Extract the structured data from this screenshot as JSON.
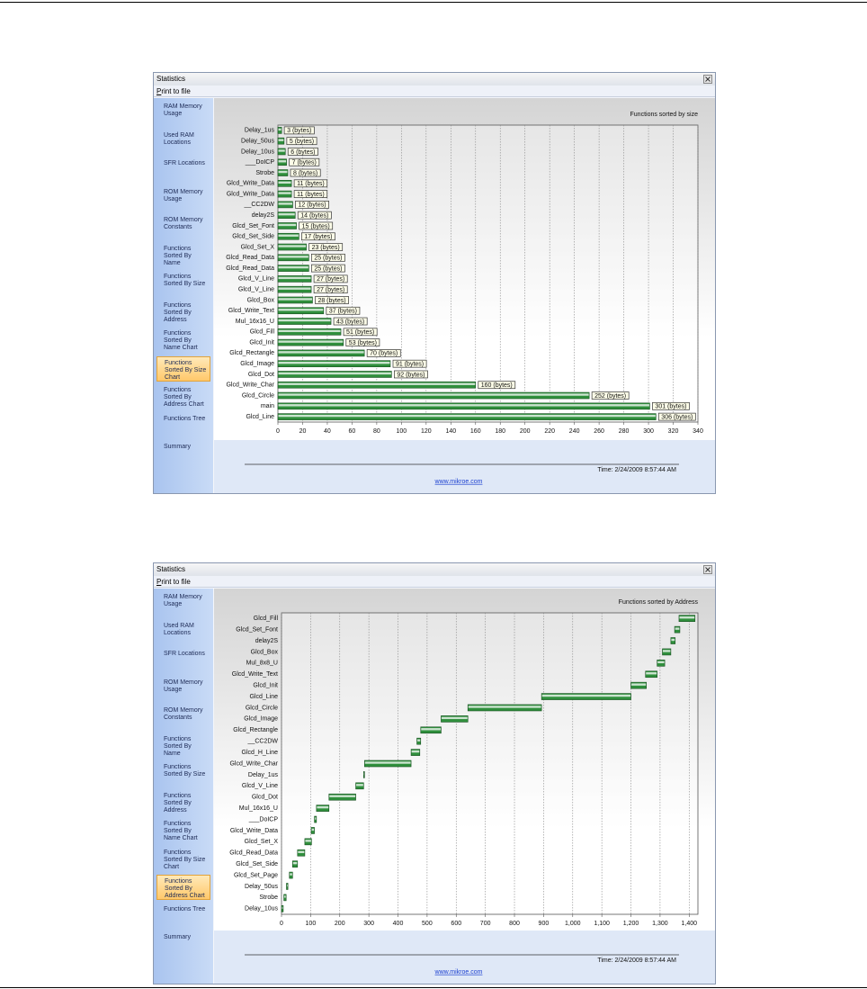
{
  "windows": [
    {
      "title": "Statistics",
      "menu": "Print to file",
      "sidebar": [
        "RAM Memory Usage",
        "Used RAM Locations",
        "SFR Locations",
        "ROM Memory Usage",
        "ROM Memory Constants",
        "Functions Sorted By Name",
        "Functions Sorted By Size",
        "Functions Sorted By Address",
        "Functions Sorted By Name Chart",
        "Functions Sorted By Size Chart",
        "Functions Sorted By Address Chart",
        "Functions Tree",
        "Summary"
      ],
      "active": 9,
      "time": "Time: 2/24/2009 8:57:44 AM",
      "link": "www.mikroe.com"
    },
    {
      "title": "Statistics",
      "menu": "Print to file",
      "sidebar": [
        "RAM Memory Usage",
        "Used RAM Locations",
        "SFR Locations",
        "ROM Memory Usage",
        "ROM Memory Constants",
        "Functions Sorted By Name",
        "Functions Sorted By Size",
        "Functions Sorted By Address",
        "Functions Sorted By Name Chart",
        "Functions Sorted By Size Chart",
        "Functions Sorted By Address Chart",
        "Functions Tree",
        "Summary"
      ],
      "active": 10,
      "time": "Time: 2/24/2009 8:57:44 AM",
      "link": "www.mikroe.com"
    }
  ],
  "chart_data": [
    {
      "type": "bar",
      "title": "Functions sorted by size",
      "categories": [
        "Delay_1us",
        "Delay_50us",
        "Delay_10us",
        "___DoICP",
        "Strobe",
        "Glcd_Write_Data",
        "Glcd_Write_Data",
        "__CC2DW",
        "delay2S",
        "Glcd_Set_Font",
        "Glcd_Set_Side",
        "Glcd_Set_X",
        "Glcd_Read_Data",
        "Glcd_Read_Data",
        "Glcd_V_Line",
        "Glcd_V_Line",
        "Glcd_Box",
        "Glcd_Write_Text",
        "Mul_16x16_U",
        "Glcd_Fill",
        "Glcd_Init",
        "Glcd_Rectangle",
        "Glcd_Image",
        "Glcd_Dot",
        "Glcd_Write_Char",
        "Glcd_Circle",
        "main",
        "Glcd_Line"
      ],
      "values": [
        3,
        5,
        6,
        7,
        8,
        11,
        11,
        12,
        14,
        15,
        17,
        23,
        25,
        25,
        27,
        27,
        28,
        37,
        43,
        51,
        53,
        70,
        91,
        92,
        160,
        252,
        301,
        306
      ],
      "value_labels": [
        "3 (bytes)",
        "5 (bytes)",
        "6 (bytes)",
        "7 (bytes)",
        "8 (bytes)",
        "11 (bytes)",
        "11 (bytes)",
        "12 (bytes)",
        "14 (bytes)",
        "15 (bytes)",
        "17 (bytes)",
        "23 (bytes)",
        "25 (bytes)",
        "25 (bytes)",
        "27 (bytes)",
        "27 (bytes)",
        "28 (bytes)",
        "37 (bytes)",
        "43 (bytes)",
        "51 (bytes)",
        "53 (bytes)",
        "70 (bytes)",
        "91 (bytes)",
        "92 (bytes)",
        "160 (bytes)",
        "252 (bytes)",
        "301 (bytes)",
        "306 (bytes)"
      ],
      "color": "#2f8f3c",
      "xlim": [
        0,
        340
      ],
      "xticks": [
        0,
        20,
        40,
        60,
        80,
        100,
        120,
        140,
        160,
        180,
        200,
        220,
        240,
        260,
        280,
        300,
        320,
        340
      ],
      "grid": true
    },
    {
      "type": "range-bar",
      "title": "Functions sorted by Address",
      "categories": [
        "Glcd_Fill",
        "Glcd_Set_Font",
        "delay2S",
        "Glcd_Box",
        "Mul_8x8_U",
        "Glcd_Write_Text",
        "Glcd_Init",
        "Glcd_Line",
        "Glcd_Circle",
        "Glcd_Image",
        "Glcd_Rectangle",
        "__CC2DW",
        "Glcd_H_Line",
        "Glcd_Write_Char",
        "Delay_1us",
        "Glcd_V_Line",
        "Glcd_Dot",
        "Mul_16x16_U",
        "___DoICP",
        "Glcd_Write_Data",
        "Glcd_Set_X",
        "Glcd_Read_Data",
        "Glcd_Set_Side",
        "Glcd_Set_Page",
        "Delay_50us",
        "Strobe",
        "Delay_10us"
      ],
      "starts": [
        1365,
        1350,
        1337,
        1308,
        1290,
        1250,
        1200,
        893,
        640,
        548,
        478,
        465,
        445,
        285,
        282,
        255,
        163,
        120,
        113,
        102,
        80,
        55,
        38,
        27,
        17,
        8,
        0
      ],
      "ends": [
        1420,
        1368,
        1352,
        1337,
        1316,
        1290,
        1253,
        1200,
        893,
        640,
        548,
        478,
        475,
        445,
        285,
        282,
        255,
        163,
        120,
        113,
        103,
        80,
        55,
        38,
        22,
        16,
        6
      ],
      "color": "#2f8f3c",
      "xlim": [
        0,
        1430
      ],
      "xticks": [
        0,
        100,
        200,
        300,
        400,
        500,
        600,
        700,
        800,
        900,
        {
          "value": 1000,
          "label": "1,000"
        },
        {
          "value": 1100,
          "label": "1,100"
        },
        {
          "value": 1200,
          "label": "1,200"
        },
        {
          "value": 1300,
          "label": "1,300"
        },
        {
          "value": 1400,
          "label": "1,400"
        }
      ],
      "grid": true
    }
  ]
}
